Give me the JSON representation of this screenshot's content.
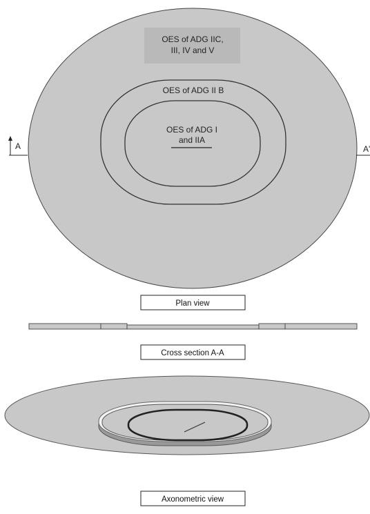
{
  "colors": {
    "zone_fill": "#c8c8c8",
    "outline": "#444444",
    "label_box": "#b9b9b9",
    "axo_light_ring": "#f2f2f2"
  },
  "zones": {
    "outer": {
      "line1": "OES of ADG IIC,",
      "line2": "III, IV and V"
    },
    "middle": {
      "line1": "OES of ADG II B"
    },
    "inner": {
      "line1": "OES of ADG I",
      "line2": "and IIA"
    }
  },
  "section_marks": {
    "left": "A",
    "right": "A'",
    "left_arrow_icon": "up-arrow-icon"
  },
  "captions": {
    "plan_view": "Plan view",
    "cross_section": "Cross section A-A",
    "axonometric_view": "Axonometric view"
  }
}
